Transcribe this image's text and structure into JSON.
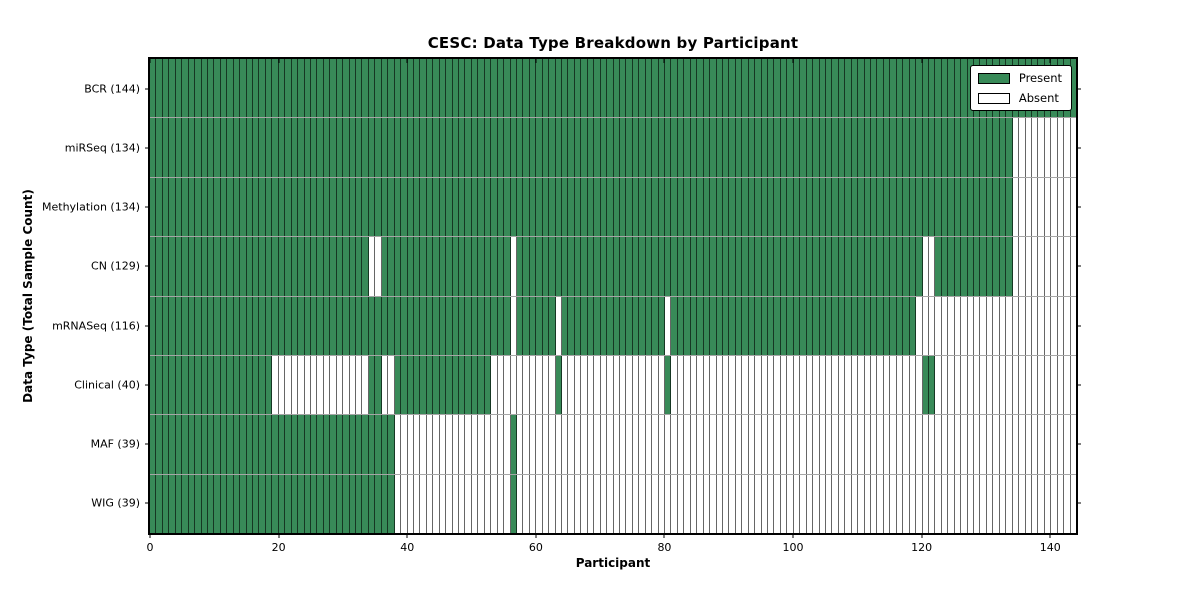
{
  "title": "CESC: Data Type Breakdown by Participant",
  "colors": {
    "present": "#388a58",
    "absent": "#ffffff",
    "frame": "#000000"
  },
  "chart_data": {
    "type": "heatmap",
    "title": "CESC: Data Type Breakdown by Participant",
    "xlabel": "Participant",
    "ylabel": "Data Type (Total Sample Count)",
    "x_range": [
      0,
      144
    ],
    "x_ticks": [
      0,
      20,
      40,
      60,
      80,
      100,
      120,
      140
    ],
    "n_participants": 144,
    "grid_on": true,
    "legend_position": "upper right",
    "legend": [
      {
        "label": "Present",
        "color": "#388a58"
      },
      {
        "label": "Absent",
        "color": "#ffffff"
      }
    ],
    "rows": [
      {
        "label": "BCR (144)",
        "data_type": "BCR",
        "count": 144,
        "present_ranges": [
          [
            0,
            143
          ]
        ]
      },
      {
        "label": "miRSeq (134)",
        "data_type": "miRSeq",
        "count": 134,
        "present_ranges": [
          [
            0,
            133
          ]
        ]
      },
      {
        "label": "Methylation (134)",
        "data_type": "Methylation",
        "count": 134,
        "present_ranges": [
          [
            0,
            133
          ]
        ]
      },
      {
        "label": "CN (129)",
        "data_type": "CN",
        "count": 129,
        "present_ranges": [
          [
            0,
            33
          ],
          [
            36,
            55
          ],
          [
            57,
            119
          ],
          [
            122,
            133
          ]
        ]
      },
      {
        "label": "mRNASeq (116)",
        "data_type": "mRNASeq",
        "count": 116,
        "present_ranges": [
          [
            0,
            55
          ],
          [
            57,
            62
          ],
          [
            64,
            79
          ],
          [
            81,
            118
          ]
        ]
      },
      {
        "label": "Clinical (40)",
        "data_type": "Clinical",
        "count": 40,
        "present_ranges": [
          [
            0,
            18
          ],
          [
            34,
            35
          ],
          [
            38,
            52
          ],
          [
            63,
            63
          ],
          [
            80,
            80
          ],
          [
            120,
            121
          ]
        ]
      },
      {
        "label": "MAF (39)",
        "data_type": "MAF",
        "count": 39,
        "present_ranges": [
          [
            0,
            37
          ],
          [
            56,
            56
          ]
        ]
      },
      {
        "label": "WIG (39)",
        "data_type": "WIG",
        "count": 39,
        "present_ranges": [
          [
            0,
            37
          ],
          [
            56,
            56
          ]
        ]
      }
    ]
  }
}
